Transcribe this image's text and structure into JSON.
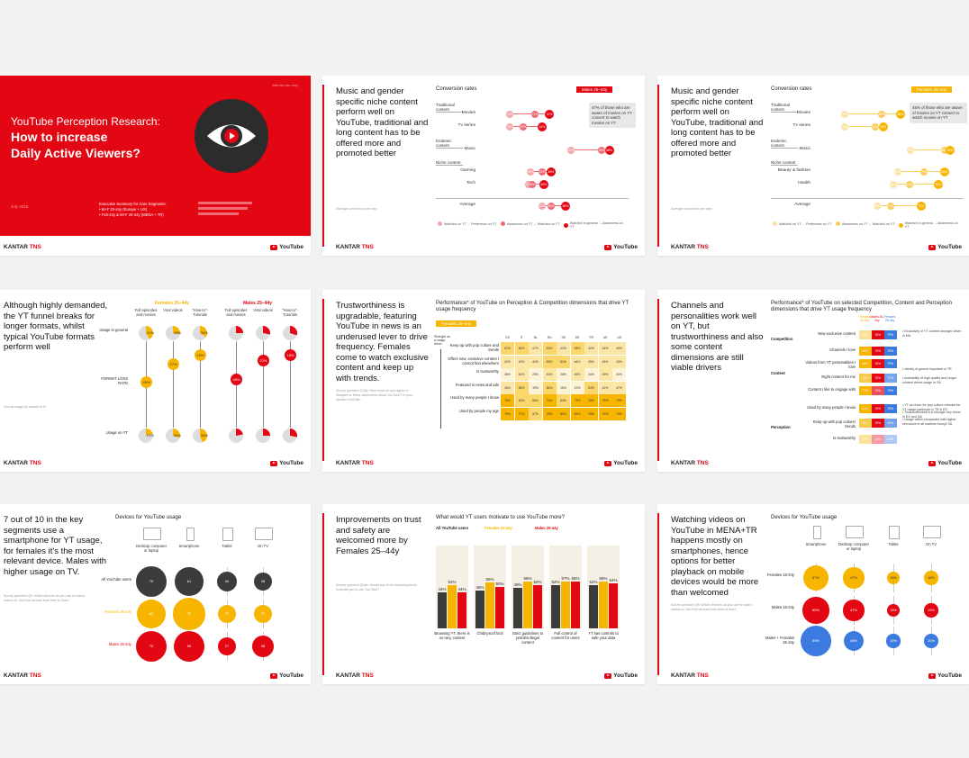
{
  "slide1": {
    "title_line1": "YouTube Perception Research:",
    "title_line2": "How to increase",
    "title_line3": "Daily Active Viewers?",
    "summary_line1": "Executive Summary for Core Segments:",
    "summary_line2": "• M+F 25-44y (Europe + US)",
    "summary_line3": "• F18-24y & M+F 25-44y (MENA + TR)",
    "date": "July 2018",
    "top_right": "Internal use only",
    "brand": "KANTAR",
    "brand_suffix": "TNS",
    "yt": "YouTube"
  },
  "slide2": {
    "title": "Music and gender specific niche content perform well on YouTube, traditional and long content has to be offered more and promoted better",
    "chart_title": "Conversion rates",
    "segment": "Males 25–44y",
    "callout": "47% of those who are aware of movies on YT convert to watch movies on YT",
    "sections": [
      "Traditional content",
      "Endemic content",
      "Niche content"
    ],
    "rows": [
      {
        "label": "Movies",
        "values": [
          "20%",
          "37%",
          "47%"
        ]
      },
      {
        "label": "Tv series",
        "values": [
          "20%",
          "29%",
          "42%"
        ]
      },
      {
        "label": "Music",
        "values": [
          "62%",
          "83%",
          "88%"
        ]
      },
      {
        "label": "Gaming",
        "values": [
          "34%",
          "42%",
          "48%"
        ]
      },
      {
        "label": "Tech",
        "values": [
          "33%",
          "35%",
          "43%"
        ]
      },
      {
        "label": "Average",
        "values": [
          "42%",
          "48%",
          "58%"
        ]
      }
    ],
    "legend": [
      "Watched on YT → Preference on YT",
      "Awareness on YT → Watched on YT",
      "Watched in general → Awareness on YT"
    ],
    "note": "Average conversion per step",
    "brand": "KANTAR",
    "brand_suffix": "TNS",
    "yt": "YouTube"
  },
  "slide3": {
    "title": "Music and gender specific niche content perform well on YouTube, traditional and long content has to be offered more and promoted better",
    "chart_title": "Conversion rates",
    "segment": "Females 25–44y",
    "callout": "45% of those who are aware of movies on YT convert to watch movies on YT",
    "sections": [
      "Traditional content",
      "Endemic content",
      "Niche content"
    ],
    "rows": [
      {
        "label": "Movies",
        "values": [
          "20%",
          "45%",
          "58%"
        ]
      },
      {
        "label": "Tv series",
        "values": [
          "20%",
          "41%",
          "46%"
        ]
      },
      {
        "label": "Music",
        "values": [
          "65%",
          "88%",
          "92%"
        ]
      },
      {
        "label": "Beauty & fashion",
        "values": [
          "56%",
          "74%",
          "88%"
        ]
      },
      {
        "label": "Health",
        "values": [
          "53%",
          "64%",
          "84%"
        ]
      },
      {
        "label": "Average",
        "values": [
          "42%",
          "51%",
          "72%"
        ]
      }
    ],
    "legend": [
      "Watched on YT → Preference on YT",
      "Awareness on YT → Watched on YT",
      "Watched in general → Awareness on YT"
    ],
    "note": "Average conversion per step",
    "brand": "KANTAR",
    "brand_suffix": "TNS",
    "yt": "YouTube"
  },
  "slide4": {
    "title": "Although highly demanded, the YT funnel breaks for longer formats, whilst typical YouTube formats perform well",
    "females": "Females 25–44y",
    "males": "Males 25–44y",
    "cols": [
      "Full episodes and movies",
      "Viral videos",
      "\"How-to\"-Tutorials"
    ],
    "row1": "Usage in general",
    "row2": "FORMAT LOSS RATE",
    "row3": "Usage on YT",
    "top_values": [
      "41%",
      "28%",
      "34%",
      "",
      "",
      ""
    ],
    "loss_values": [
      "49%",
      "27%",
      "15%",
      "45%",
      "22%",
      "16%"
    ],
    "bottom_values": [
      "21%",
      "30%",
      "44%",
      "",
      "",
      ""
    ],
    "note": "Format usage by market in %",
    "brand": "KANTAR",
    "brand_suffix": "TNS",
    "yt": "YouTube"
  },
  "slide5": {
    "title": "Trustworthiness is upgradable, featuring YouTube in news is an underused lever to drive frequency. Females come to watch exclusive content and keep up with trends.",
    "chart_title": "Performance* of YouTube on Perception & Competition dimensions that drive YT usage frequency",
    "segment": "Females 25–44y",
    "axis_label": "Strength as a usage driver",
    "markets": [
      "ES",
      "IT",
      "NL",
      "RU",
      "SE",
      "DE",
      "FR",
      "UK",
      "US"
    ],
    "rows": [
      {
        "label": "Keep up with pop culture and trends",
        "values": [
          "61%",
          "56%",
          "47%",
          "53%",
          "42%",
          "55%",
          "42%",
          "46%",
          "49%"
        ]
      },
      {
        "label": "Offers new, exclusive content I cannot find elsewhere",
        "values": [
          "42%",
          "43%",
          "41%",
          "53%",
          "51%",
          "46%",
          "49%",
          "45%",
          "43%"
        ]
      },
      {
        "label": "Is trustworthy",
        "values": [
          "36%",
          "44%",
          "29%",
          "43%",
          "28%",
          "46%",
          "34%",
          "49%",
          "34%"
        ]
      },
      {
        "label": "Featured in news and ads",
        "values": [
          "46%",
          "56%",
          "19%",
          "56%",
          "16%",
          "19%",
          "54%",
          "42%",
          "47%"
        ]
      },
      {
        "label": "Used by many people I know",
        "values": [
          "79%",
          "69%",
          "56%",
          "73%",
          "64%",
          "73%",
          "78%",
          "75%",
          "79%"
        ]
      },
      {
        "label": "Used by people my age",
        "values": [
          "79%",
          "77%",
          "57%",
          "75%",
          "80%",
          "81%",
          "78%",
          "79%",
          "73%"
        ]
      }
    ],
    "note": "Survey question Q33a: How much do you agree or disagree to these statements about YouTube? In your opinion YouTube…",
    "brand": "KANTAR",
    "brand_suffix": "TNS",
    "yt": "YouTube"
  },
  "slide6": {
    "title": "Channels and personalities work well on YT, but trustworthiness and also some content dimensions are still viable drivers",
    "chart_title": "Performance* of YouTube on selected Competition, Content and Perception dimensions that drive YT usage frequency",
    "cols": [
      "Females 18-24y",
      "Males 25-44y",
      "Females 25-44y"
    ],
    "groups": [
      "Competition",
      "Content",
      "Perception"
    ],
    "rows": [
      {
        "label": "New exclusive content",
        "values": [
          "49%",
          "76%",
          "79%"
        ]
      },
      {
        "label": "Channels I love",
        "values": [
          "89%",
          "75%",
          "79%"
        ]
      },
      {
        "label": "Videos from YT personalities I love",
        "values": [
          "80%",
          "76%",
          "79%"
        ]
      },
      {
        "label": "Right content for me",
        "values": [
          "72%",
          "75%",
          "72%"
        ]
      },
      {
        "label": "Content I like to engage with",
        "values": [
          "77%",
          "73%",
          "75%"
        ]
      },
      {
        "label": "Used by many people I know",
        "values": [
          "81%",
          "76%",
          "79%"
        ]
      },
      {
        "label": "Keep up with pop culture/ trends",
        "values": [
          "70%",
          "76%",
          "69%"
        ]
      },
      {
        "label": "Is trustworthy",
        "values": [
          "64%",
          "44%",
          "43%"
        ]
      }
    ],
    "notes": [
      "• Exclusivity of YT content stronger driver in MA",
      "• Variety of genres important in TR",
      "• Availability of high quality and longer content drives usage in SA",
      "• YT as driver for pop culture relevant for YT usage particular in TR & EG",
      "• Trustworthiness is a stronger key driver in EG and SA",
      "• Usage within companies with higher relevance in all markets except SA"
    ],
    "brand": "KANTAR",
    "brand_suffix": "TNS",
    "yt": "YouTube"
  },
  "slide7": {
    "title": "7 out of 10 in the key segments use a smartphone for YT usage, for females it's the most relevant device. Males with higher usage on TV.",
    "chart_title": "Devices for YouTube usage",
    "devices": [
      "Desktop computer or laptop",
      "Smartphone",
      "Tablet",
      "On TV"
    ],
    "groups": [
      {
        "label": "All YouTube users",
        "values": [
          "70",
          "61",
          "34",
          "28"
        ]
      },
      {
        "label": "Females 25-44y",
        "values": [
          "62",
          "72",
          "27",
          "27"
        ]
      },
      {
        "label": "Males 25-44y",
        "values": [
          "70",
          "69",
          "27",
          "38"
        ]
      }
    ],
    "note": "Survey question Q9: Which devices do you use to watch videos on YouTube at least from time to time?",
    "brand": "KANTAR",
    "brand_suffix": "TNS",
    "yt": "YouTube"
  },
  "slide8": {
    "title": "Improvements on trust and safety are welcomed more by Females 25–44y",
    "chart_title": "What would YT users motivate to use YouTube more?",
    "series_names": [
      "All YouTube users",
      "Females 25-44y",
      "Males 25-44y"
    ],
    "categories": [
      "Browsing YT, there is no racy content",
      "Child-proof lock",
      "Strict guidelines to prohibit illegal content",
      "Full control of content for users",
      "YT has controls to safe your data"
    ],
    "note": "Survey question Q34b: Would any of the following below motivate you to use YouTube?",
    "brand": "KANTAR",
    "brand_suffix": "TNS",
    "yt": "YouTube"
  },
  "slide9": {
    "title": "Watching videos on YouTube in MENA+TR happens mostly on smartphones, hence options for better playback on mobile devices would be more than welcomed",
    "chart_title": "Devices for YouTube usage",
    "devices": [
      "Smartphone",
      "Desktop computer or laptop",
      "Tablet",
      "On TV"
    ],
    "groups": [
      {
        "label": "Females 18-24y",
        "values": [
          "67%",
          "47%",
          "16%",
          "18%"
        ]
      },
      {
        "label": "Males 18-24y",
        "values": [
          "69%",
          "47%",
          "15%",
          "19%"
        ]
      },
      {
        "label": "Males + Females 25-34y",
        "values": [
          "85%",
          "46%",
          "19%",
          "20%"
        ]
      }
    ],
    "note": "Survey question Q9: Which devices do you use to watch videos on YouTube at least from time to time?",
    "brand": "KANTAR",
    "brand_suffix": "TNS",
    "yt": "YouTube"
  },
  "chart_data": [
    {
      "type": "bar",
      "categories": [
        "Browsing YT, there is no racy content",
        "Child-proof lock",
        "Strict guidelines to prohibit illegal content",
        "Full control of content for users",
        "YT has controls to safe your data"
      ],
      "series": [
        {
          "name": "All YouTube users",
          "values": [
            44,
            46,
            49,
            52,
            52
          ]
        },
        {
          "name": "Females 25-44y",
          "values": [
            52,
            55,
            56,
            57,
            56
          ]
        },
        {
          "name": "Males 25-44y",
          "values": [
            44,
            50,
            52,
            56,
            54
          ]
        }
      ],
      "title": "What would YT users motivate to use YouTube more?",
      "ylim": [
        0,
        100
      ]
    }
  ],
  "colors": {
    "red": "#e30613",
    "yellow": "#f7b500",
    "dark": "#3c3c3c",
    "blue": "#3b7be0",
    "tan": "#f5f0e6"
  }
}
